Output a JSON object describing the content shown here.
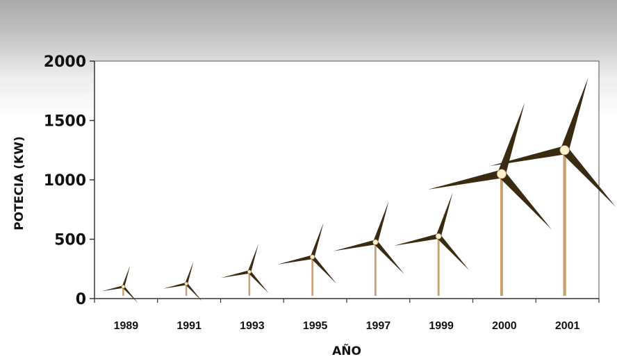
{
  "chart_data": {
    "type": "bar",
    "title": "",
    "xlabel": "AÑO",
    "ylabel": "POTECIA (KW)",
    "categories": [
      "1989",
      "1991",
      "1993",
      "1995",
      "1997",
      "1999",
      "2000",
      "2001"
    ],
    "values": [
      100,
      125,
      225,
      350,
      475,
      525,
      1050,
      1250
    ],
    "ylim": [
      0,
      2000
    ],
    "yticks": [
      "2000",
      "1500",
      "1000",
      "500",
      "0"
    ],
    "ytick_values": [
      2000,
      1500,
      1000,
      500,
      0
    ],
    "grid": false,
    "legend": "none",
    "colors": {
      "tower": "#c9a070",
      "blade": "#3a2a12",
      "hub": "#fff3cf"
    }
  }
}
